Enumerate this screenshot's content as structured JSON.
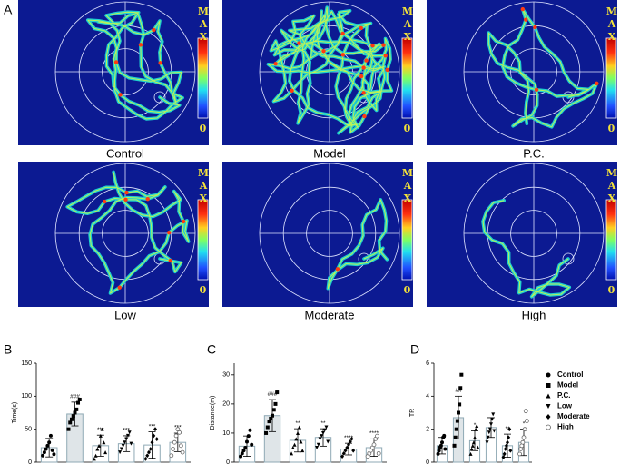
{
  "panel_a": {
    "label": "A",
    "tiles": [
      {
        "label": "Control"
      },
      {
        "label": "Model"
      },
      {
        "label": "P.C."
      },
      {
        "label": "Low"
      },
      {
        "label": "Moderate"
      },
      {
        "label": "High"
      }
    ],
    "colorbar": {
      "max": "MAX",
      "min": "0"
    }
  },
  "legend": {
    "items": [
      "Control",
      "Model",
      "P.C.",
      "Low",
      "Moderate",
      "High"
    ],
    "markers": [
      "circle",
      "square",
      "triangle-up",
      "triangle-down",
      "diamond",
      "circle-open"
    ]
  },
  "chart_data": [
    {
      "type": "bar",
      "panel": "B",
      "ylabel": "Time(s)",
      "ylim": [
        0,
        150
      ],
      "yticks": [
        0,
        50,
        100,
        150
      ],
      "colors": [
        "#ffffff",
        "#dfe5e8",
        "#ffffff",
        "#ffffff",
        "#ffffff",
        "#ffffff"
      ],
      "edge_color": "#8fa9b5",
      "values": [
        22,
        73,
        25,
        28,
        26,
        30
      ],
      "errors": [
        14,
        18,
        16,
        12,
        20,
        14
      ],
      "annotations": [
        null,
        "###",
        "***",
        "***",
        "***",
        "***"
      ],
      "points": [
        [
          10,
          15,
          20,
          25,
          30,
          40,
          18,
          12
        ],
        [
          50,
          60,
          65,
          70,
          75,
          80,
          90,
          95
        ],
        [
          5,
          10,
          20,
          25,
          40,
          50,
          30,
          15
        ],
        [
          15,
          20,
          25,
          30,
          35,
          40,
          45,
          28
        ],
        [
          5,
          10,
          15,
          20,
          30,
          40,
          50,
          35
        ],
        [
          10,
          20,
          30,
          40,
          50,
          45,
          25,
          15
        ]
      ]
    },
    {
      "type": "bar",
      "panel": "C",
      "ylabel": "Distance(m)",
      "ylim": [
        0,
        34
      ],
      "yticks": [
        0,
        10,
        20,
        30
      ],
      "colors": [
        "#ffffff",
        "#dfe5e8",
        "#ffffff",
        "#ffffff",
        "#ffffff",
        "#ffffff"
      ],
      "edge_color": "#8fa9b5",
      "values": [
        5.5,
        16,
        7.5,
        8.5,
        4.5,
        5
      ],
      "errors": [
        3.5,
        5.5,
        4,
        3,
        2,
        3
      ],
      "annotations": [
        null,
        "###",
        "**",
        "**",
        "****",
        "****"
      ],
      "points": [
        [
          2,
          3,
          4,
          5,
          7,
          9,
          11,
          6
        ],
        [
          10,
          12,
          14,
          15,
          16,
          18,
          20,
          24
        ],
        [
          3,
          5,
          6,
          8,
          10,
          12,
          7,
          4
        ],
        [
          5,
          6,
          8,
          9,
          10,
          11,
          12,
          7
        ],
        [
          2,
          3,
          4,
          5,
          6,
          7,
          8,
          4
        ],
        [
          2,
          3,
          4,
          5,
          6,
          8,
          9,
          3
        ]
      ]
    },
    {
      "type": "bar",
      "panel": "D",
      "ylabel": "TR",
      "ylim": [
        0,
        6
      ],
      "yticks": [
        0,
        2,
        4,
        6
      ],
      "colors": [
        "#ffffff",
        "#dfe5e8",
        "#ffffff",
        "#ffffff",
        "#ffffff",
        "#ffffff"
      ],
      "edge_color": "#8fa9b5",
      "values": [
        1.0,
        2.7,
        1.3,
        2.1,
        1.0,
        1.2
      ],
      "errors": [
        0.5,
        1.3,
        0.6,
        0.6,
        0.7,
        0.8
      ],
      "annotations": [
        null,
        "##",
        "*",
        null,
        "**",
        "*"
      ],
      "points": [
        [
          0.5,
          0.7,
          0.9,
          1.0,
          1.2,
          1.5,
          1.6,
          0.8
        ],
        [
          1.0,
          1.5,
          2.0,
          2.5,
          3.0,
          3.5,
          4.5,
          5.3
        ],
        [
          0.5,
          0.8,
          1.0,
          1.2,
          1.5,
          2.0,
          2.2,
          0.9
        ],
        [
          1.2,
          1.5,
          1.8,
          2.0,
          2.3,
          2.6,
          2.9,
          1.9
        ],
        [
          0.3,
          0.5,
          0.8,
          1.0,
          1.2,
          1.5,
          2.0,
          0.7
        ],
        [
          0.5,
          0.8,
          1.0,
          1.2,
          1.5,
          2.0,
          3.1,
          2.5
        ]
      ]
    }
  ]
}
